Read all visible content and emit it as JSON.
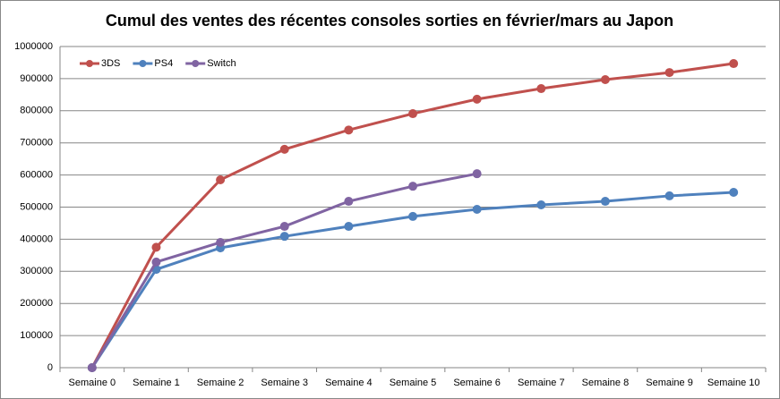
{
  "chart_data": {
    "type": "line",
    "title": "Cumul des ventes des récentes consoles sorties en février/mars au Japon",
    "categories": [
      "Semaine 0",
      "Semaine 1",
      "Semaine 2",
      "Semaine 3",
      "Semaine 4",
      "Semaine 5",
      "Semaine 6",
      "Semaine 7",
      "Semaine 8",
      "Semaine 9",
      "Semaine 10"
    ],
    "series": [
      {
        "name": "3DS",
        "color": "#c0504d",
        "values": [
          0,
          375000,
          585000,
          680000,
          740000,
          791000,
          836000,
          869000,
          897000,
          919000,
          947000
        ]
      },
      {
        "name": "PS4",
        "color": "#4f81bd",
        "values": [
          0,
          306000,
          373000,
          409000,
          440000,
          471000,
          493000,
          507000,
          518000,
          535000,
          546000
        ]
      },
      {
        "name": "Switch",
        "color": "#8064a2",
        "values": [
          0,
          329000,
          390000,
          440000,
          518000,
          565000,
          604000,
          null,
          null,
          null,
          null
        ]
      }
    ],
    "ylim": [
      0,
      1000000
    ],
    "yticks": [
      0,
      100000,
      200000,
      300000,
      400000,
      500000,
      600000,
      700000,
      800000,
      900000,
      1000000
    ],
    "grid": true,
    "legend": "top-left"
  }
}
